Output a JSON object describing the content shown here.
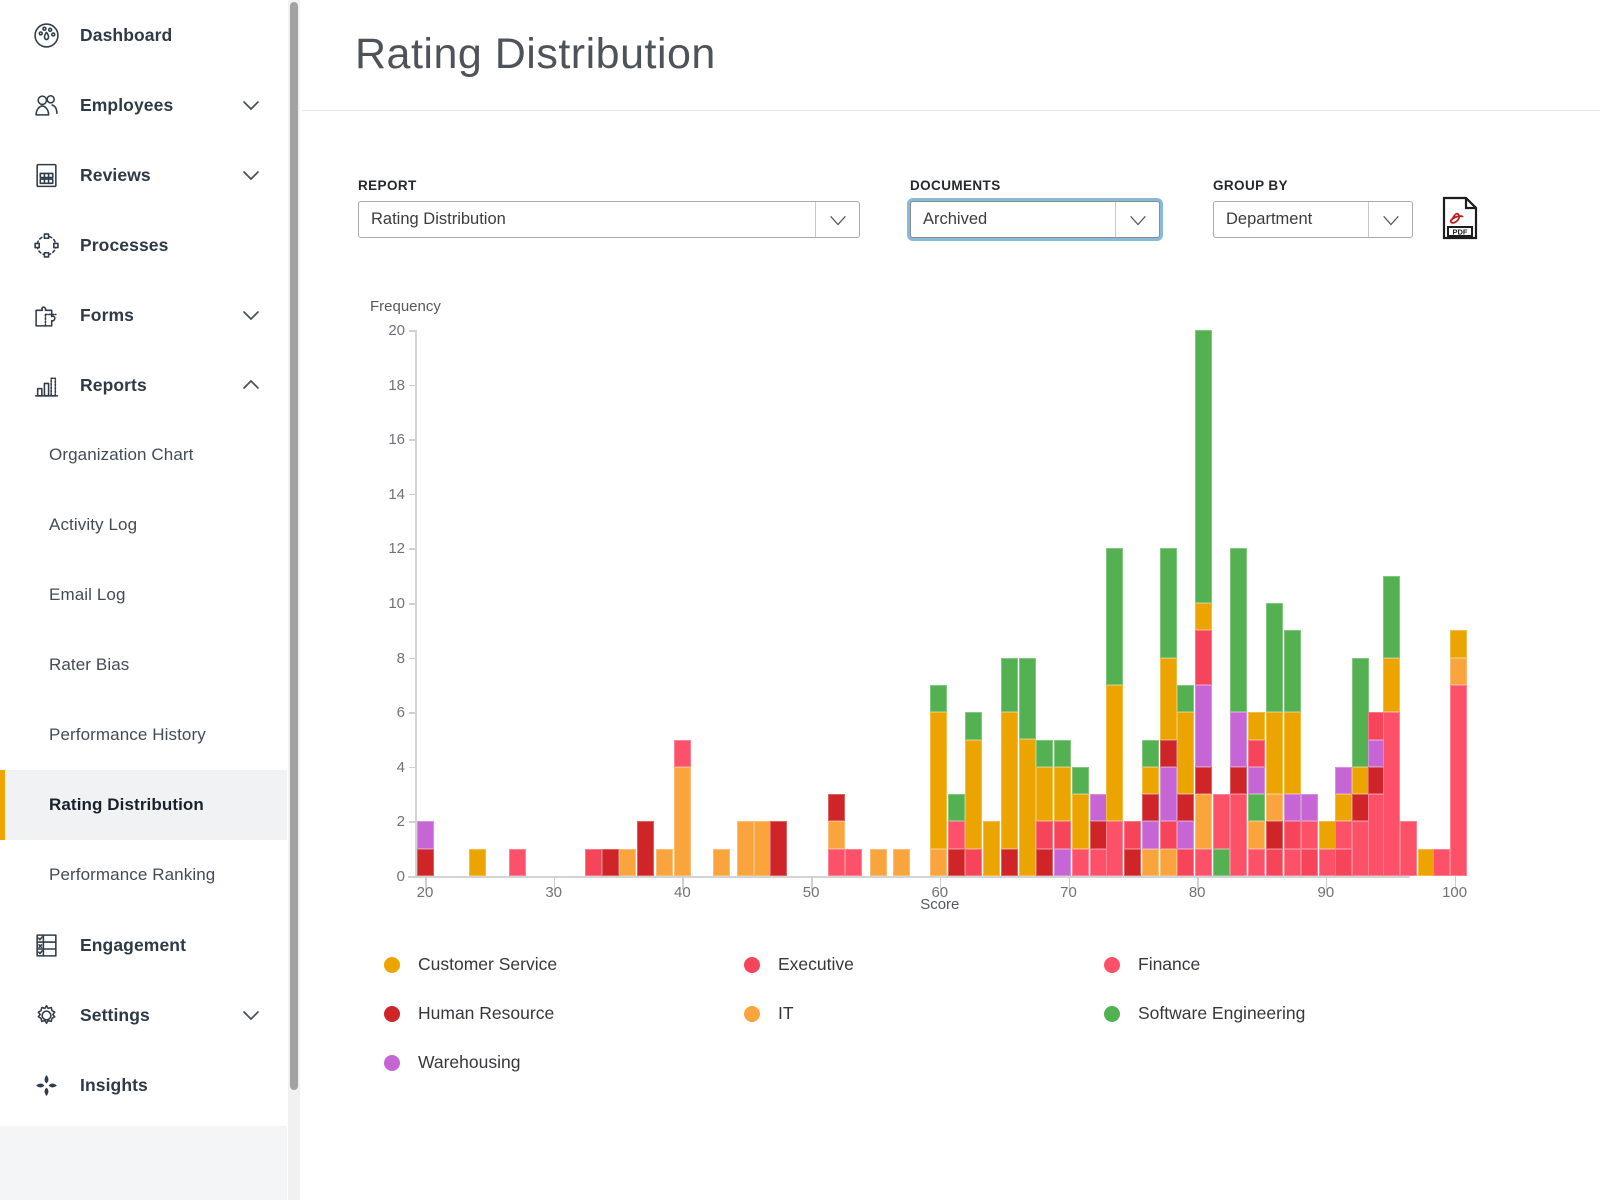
{
  "sidebar": {
    "items": [
      {
        "label": "Dashboard",
        "icon": "dashboard",
        "chevron": null
      },
      {
        "label": "Employees",
        "icon": "employees",
        "chevron": "down"
      },
      {
        "label": "Reviews",
        "icon": "reviews",
        "chevron": "down"
      },
      {
        "label": "Processes",
        "icon": "processes",
        "chevron": null
      },
      {
        "label": "Forms",
        "icon": "forms",
        "chevron": "down"
      },
      {
        "label": "Reports",
        "icon": "reports",
        "chevron": "up",
        "children": [
          "Organization Chart",
          "Activity Log",
          "Email Log",
          "Rater Bias",
          "Performance History",
          "Rating Distribution",
          "Performance Ranking"
        ],
        "selected_child": "Rating Distribution"
      },
      {
        "label": "Engagement",
        "icon": "engagement",
        "chevron": null
      },
      {
        "label": "Settings",
        "icon": "settings",
        "chevron": "down"
      },
      {
        "label": "Insights",
        "icon": "insights",
        "chevron": null
      }
    ],
    "accent_color": "#f0a400"
  },
  "header": {
    "title": "Rating Distribution"
  },
  "controls": {
    "report": {
      "label": "REPORT",
      "value": "Rating Distribution"
    },
    "documents": {
      "label": "DOCUMENTS",
      "value": "Archived",
      "focused": true,
      "focus_color": "#85badb"
    },
    "group_by": {
      "label": "GROUP BY",
      "value": "Department"
    },
    "export_pdf_label": "PDF"
  },
  "chart_data": {
    "type": "bar",
    "stacked": true,
    "xlabel": "Score",
    "ylabel": "Frequency",
    "xlim": [
      19,
      104
    ],
    "ylim": [
      0,
      20
    ],
    "x_ticks": [
      20,
      30,
      40,
      50,
      60,
      70,
      80,
      90,
      100
    ],
    "y_ticks": [
      0,
      2,
      4,
      6,
      8,
      10,
      12,
      14,
      16,
      18,
      20
    ],
    "grid": false,
    "legend_position": "bottom",
    "departments": {
      "CS": {
        "name": "Customer Service",
        "color": "#eba400"
      },
      "EX": {
        "name": "Executive",
        "color": "#f6455a"
      },
      "FI": {
        "name": "Finance",
        "color": "#fc5168"
      },
      "HR": {
        "name": "Human Resource",
        "color": "#cf2428"
      },
      "IT": {
        "name": "IT",
        "color": "#faa43e"
      },
      "SE": {
        "name": "Software Engineering",
        "color": "#53b152"
      },
      "WH": {
        "name": "Warehousing",
        "color": "#c566d4"
      }
    },
    "legend_order": [
      "CS",
      "EX",
      "FI",
      "HR",
      "IT",
      "SE",
      "WH"
    ],
    "bars": [
      {
        "x": 20.0,
        "s": [
          [
            "HR",
            1
          ],
          [
            "WH",
            1
          ]
        ]
      },
      {
        "x": 24.1,
        "s": [
          [
            "CS",
            1
          ]
        ]
      },
      {
        "x": 27.2,
        "s": [
          [
            "FI",
            1
          ]
        ]
      },
      {
        "x": 33.1,
        "s": [
          [
            "EX",
            1
          ]
        ]
      },
      {
        "x": 34.4,
        "s": [
          [
            "HR",
            1
          ]
        ]
      },
      {
        "x": 35.7,
        "s": [
          [
            "IT",
            1
          ]
        ]
      },
      {
        "x": 37.1,
        "s": [
          [
            "HR",
            2
          ]
        ]
      },
      {
        "x": 38.6,
        "s": [
          [
            "IT",
            1
          ]
        ]
      },
      {
        "x": 40.0,
        "s": [
          [
            "IT",
            4
          ],
          [
            "FI",
            1
          ]
        ]
      },
      {
        "x": 43.0,
        "s": [
          [
            "IT",
            1
          ]
        ]
      },
      {
        "x": 44.9,
        "s": [
          [
            "IT",
            2
          ]
        ]
      },
      {
        "x": 46.2,
        "s": [
          [
            "IT",
            2
          ]
        ]
      },
      {
        "x": 47.5,
        "s": [
          [
            "HR",
            2
          ]
        ]
      },
      {
        "x": 52.0,
        "s": [
          [
            "FI",
            1
          ],
          [
            "IT",
            1
          ],
          [
            "HR",
            1
          ]
        ]
      },
      {
        "x": 53.3,
        "s": [
          [
            "FI",
            1
          ]
        ]
      },
      {
        "x": 55.2,
        "s": [
          [
            "IT",
            1
          ]
        ]
      },
      {
        "x": 57.0,
        "s": [
          [
            "IT",
            1
          ]
        ]
      },
      {
        "x": 59.9,
        "s": [
          [
            "IT",
            1
          ],
          [
            "CS",
            5
          ],
          [
            "SE",
            1
          ]
        ]
      },
      {
        "x": 61.3,
        "s": [
          [
            "HR",
            1
          ],
          [
            "FI",
            1
          ],
          [
            "SE",
            1
          ]
        ]
      },
      {
        "x": 62.6,
        "s": [
          [
            "EX",
            1
          ],
          [
            "CS",
            4
          ],
          [
            "SE",
            1
          ]
        ]
      },
      {
        "x": 64.0,
        "s": [
          [
            "CS",
            2
          ]
        ]
      },
      {
        "x": 65.4,
        "s": [
          [
            "HR",
            1
          ],
          [
            "CS",
            5
          ],
          [
            "SE",
            2
          ]
        ]
      },
      {
        "x": 66.8,
        "s": [
          [
            "CS",
            5
          ],
          [
            "SE",
            3
          ]
        ]
      },
      {
        "x": 68.1,
        "s": [
          [
            "HR",
            1
          ],
          [
            "EX",
            1
          ],
          [
            "CS",
            2
          ],
          [
            "SE",
            1
          ]
        ]
      },
      {
        "x": 69.5,
        "s": [
          [
            "WH",
            1
          ],
          [
            "EX",
            1
          ],
          [
            "CS",
            2
          ],
          [
            "SE",
            1
          ]
        ]
      },
      {
        "x": 70.9,
        "s": [
          [
            "FI",
            1
          ],
          [
            "CS",
            2
          ],
          [
            "SE",
            1
          ]
        ]
      },
      {
        "x": 72.3,
        "s": [
          [
            "FI",
            1
          ],
          [
            "HR",
            1
          ],
          [
            "WH",
            1
          ]
        ]
      },
      {
        "x": 73.6,
        "s": [
          [
            "FI",
            2
          ],
          [
            "CS",
            5
          ],
          [
            "SE",
            5
          ]
        ]
      },
      {
        "x": 75.0,
        "s": [
          [
            "HR",
            1
          ],
          [
            "EX",
            1
          ]
        ]
      },
      {
        "x": 76.4,
        "s": [
          [
            "IT",
            1
          ],
          [
            "WH",
            1
          ],
          [
            "HR",
            1
          ],
          [
            "CS",
            1
          ],
          [
            "SE",
            1
          ]
        ]
      },
      {
        "x": 77.8,
        "s": [
          [
            "IT",
            1
          ],
          [
            "EX",
            1
          ],
          [
            "WH",
            2
          ],
          [
            "HR",
            1
          ],
          [
            "CS",
            3
          ],
          [
            "SE",
            4
          ]
        ]
      },
      {
        "x": 79.1,
        "s": [
          [
            "EX",
            1
          ],
          [
            "WH",
            1
          ],
          [
            "HR",
            1
          ],
          [
            "CS",
            3
          ],
          [
            "SE",
            1
          ]
        ]
      },
      {
        "x": 80.5,
        "s": [
          [
            "FI",
            1
          ],
          [
            "IT",
            2
          ],
          [
            "HR",
            1
          ],
          [
            "WH",
            3
          ],
          [
            "EX",
            2
          ],
          [
            "CS",
            1
          ],
          [
            "SE",
            10
          ]
        ]
      },
      {
        "x": 81.9,
        "s": [
          [
            "SE",
            1
          ],
          [
            "FI",
            2
          ]
        ]
      },
      {
        "x": 83.2,
        "s": [
          [
            "FI",
            3
          ],
          [
            "HR",
            1
          ],
          [
            "WH",
            2
          ],
          [
            "SE",
            6
          ]
        ]
      },
      {
        "x": 84.6,
        "s": [
          [
            "FI",
            1
          ],
          [
            "IT",
            1
          ],
          [
            "SE",
            1
          ],
          [
            "WH",
            1
          ],
          [
            "EX",
            1
          ],
          [
            "CS",
            1
          ]
        ]
      },
      {
        "x": 86.0,
        "s": [
          [
            "EX",
            1
          ],
          [
            "HR",
            1
          ],
          [
            "IT",
            1
          ],
          [
            "CS",
            3
          ],
          [
            "SE",
            4
          ]
        ]
      },
      {
        "x": 87.4,
        "s": [
          [
            "FI",
            1
          ],
          [
            "EX",
            1
          ],
          [
            "WH",
            1
          ],
          [
            "CS",
            3
          ],
          [
            "SE",
            3
          ]
        ]
      },
      {
        "x": 88.7,
        "s": [
          [
            "EX",
            1
          ],
          [
            "FI",
            1
          ],
          [
            "WH",
            1
          ]
        ]
      },
      {
        "x": 90.1,
        "s": [
          [
            "FI",
            1
          ],
          [
            "CS",
            1
          ]
        ]
      },
      {
        "x": 91.4,
        "s": [
          [
            "EX",
            1
          ],
          [
            "FI",
            1
          ],
          [
            "CS",
            1
          ],
          [
            "WH",
            1
          ]
        ]
      },
      {
        "x": 92.7,
        "s": [
          [
            "FI",
            2
          ],
          [
            "HR",
            1
          ],
          [
            "CS",
            1
          ],
          [
            "SE",
            4
          ]
        ]
      },
      {
        "x": 93.9,
        "s": [
          [
            "FI",
            3
          ],
          [
            "HR",
            1
          ],
          [
            "WH",
            1
          ],
          [
            "EX",
            1
          ]
        ]
      },
      {
        "x": 95.1,
        "s": [
          [
            "FI",
            6
          ],
          [
            "CS",
            2
          ],
          [
            "SE",
            3
          ]
        ]
      },
      {
        "x": 96.4,
        "s": [
          [
            "FI",
            2
          ]
        ]
      },
      {
        "x": 97.8,
        "s": [
          [
            "CS",
            1
          ]
        ]
      },
      {
        "x": 99.0,
        "s": [
          [
            "FI",
            1
          ]
        ]
      },
      {
        "x": 100.3,
        "s": [
          [
            "FI",
            7
          ],
          [
            "IT",
            1
          ],
          [
            "CS",
            1
          ]
        ]
      }
    ]
  }
}
